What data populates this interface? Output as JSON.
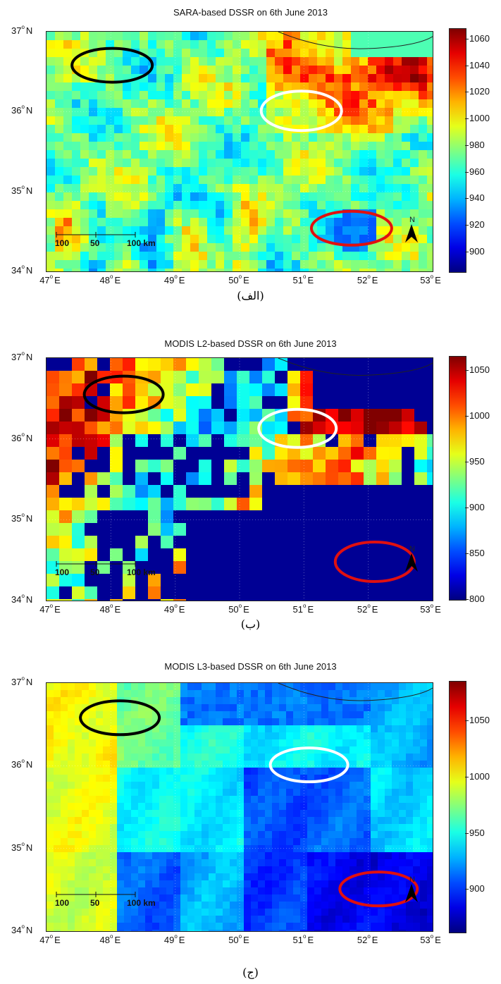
{
  "panels": [
    {
      "title": "SARA-based DSSR on 6th June 2013",
      "caption": "(الف)",
      "colorbar_ticks": [
        "1060",
        "1040",
        "1020",
        "1000",
        "980",
        "960",
        "940",
        "920",
        "900"
      ],
      "colorbar_range": [
        885,
        1068
      ],
      "style": "sara"
    },
    {
      "title": "MODIS L2-based DSSR on 6th June 2013",
      "caption": "(ب)",
      "colorbar_ticks": [
        "1050",
        "1000",
        "950",
        "900",
        "850",
        "800"
      ],
      "colorbar_range": [
        800,
        1065
      ],
      "style": "l2"
    },
    {
      "title": "MODIS L3-based DSSR on 6th June 2013",
      "caption": "(ج)",
      "colorbar_ticks": [
        "1050",
        "1000",
        "950",
        "900"
      ],
      "colorbar_range": [
        862,
        1085
      ],
      "style": "l3"
    }
  ],
  "axes": {
    "lat_labels": [
      "37",
      "36",
      "35",
      "34"
    ],
    "lat_suffix": "N",
    "lon_labels": [
      "47",
      "48",
      "49",
      "50",
      "51",
      "52",
      "53"
    ],
    "lon_suffix": "E"
  },
  "scalebar": {
    "labels": [
      "100",
      "50",
      "100 km"
    ]
  },
  "north_label": "N",
  "ellipses": [
    {
      "name": "black-ellipse",
      "color": "#000000"
    },
    {
      "name": "white-ellipse",
      "color": "#ffffff"
    },
    {
      "name": "red-ellipse",
      "color": "#e01010"
    }
  ]
}
